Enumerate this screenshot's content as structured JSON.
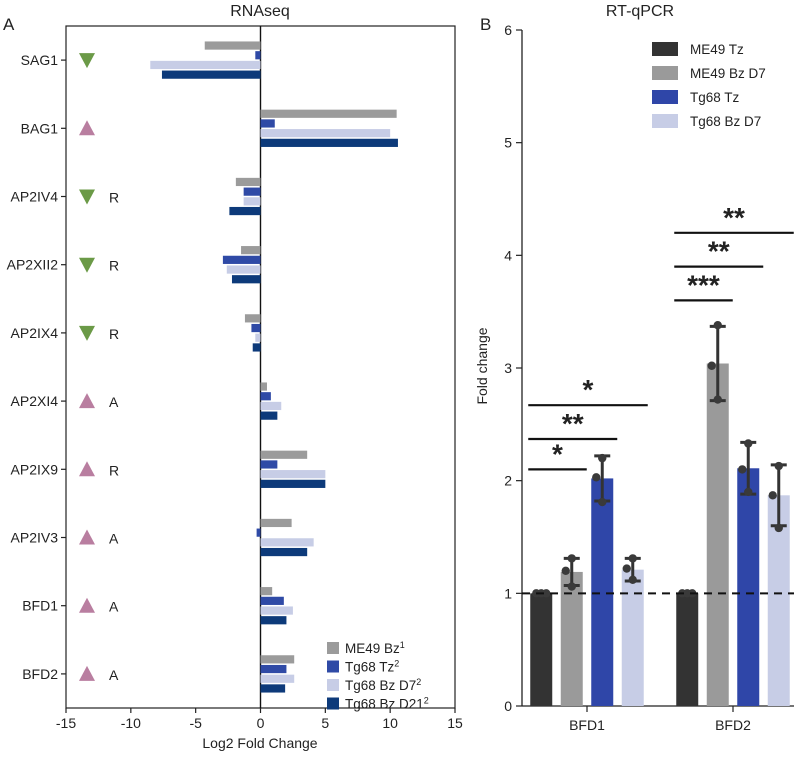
{
  "panel_labels": {
    "a": "A",
    "b": "B"
  },
  "chart_data": [
    {
      "type": "bar",
      "orientation": "horizontal",
      "title": "RNAseq",
      "xlabel": "Log2 Fold Change",
      "ylabel": "",
      "xlim": [
        -15,
        15
      ],
      "xticks": [
        "-15",
        "-10",
        "-5",
        "0",
        "5",
        "10",
        "15"
      ],
      "categories": [
        "SAG1",
        "BAG1",
        "AP2IV4",
        "AP2XII2",
        "AP2IX4",
        "AP2XI4",
        "AP2IX9",
        "AP2IV3",
        "BFD1",
        "BFD2"
      ],
      "markers": [
        {
          "direction": "down",
          "color": "#6b9a47",
          "note": ""
        },
        {
          "direction": "up",
          "color": "#b97ea0",
          "note": ""
        },
        {
          "direction": "down",
          "color": "#6b9a47",
          "note": "R"
        },
        {
          "direction": "down",
          "color": "#6b9a47",
          "note": "R"
        },
        {
          "direction": "down",
          "color": "#6b9a47",
          "note": "R"
        },
        {
          "direction": "up",
          "color": "#b97ea0",
          "note": "A"
        },
        {
          "direction": "up",
          "color": "#b97ea0",
          "note": "R"
        },
        {
          "direction": "up",
          "color": "#b97ea0",
          "note": "A"
        },
        {
          "direction": "up",
          "color": "#b97ea0",
          "note": "A"
        },
        {
          "direction": "up",
          "color": "#b97ea0",
          "note": "A"
        }
      ],
      "series": [
        {
          "name": "ME49 Bz",
          "superscript": "1",
          "color": "#9b9b9b",
          "values": [
            -4.3,
            10.5,
            -1.9,
            -1.5,
            -1.2,
            0.5,
            3.6,
            2.4,
            0.9,
            2.6
          ]
        },
        {
          "name": "Tg68 Tz",
          "superscript": "2",
          "color": "#2f4aa6",
          "values": [
            -0.4,
            1.1,
            -1.3,
            -2.9,
            -0.7,
            0.8,
            1.3,
            -0.3,
            1.8,
            2.0
          ]
        },
        {
          "name": "Tg68 Bz D7",
          "superscript": "2",
          "color": "#c7cde6",
          "values": [
            -8.5,
            10.0,
            -1.3,
            -2.6,
            -0.4,
            1.6,
            5.0,
            4.1,
            2.5,
            2.6
          ]
        },
        {
          "name": "Tg68 Bz D21",
          "superscript": "2",
          "color": "#0d3a7a",
          "values": [
            -7.6,
            10.6,
            -2.4,
            -2.2,
            -0.6,
            1.3,
            5.0,
            3.6,
            2.0,
            1.9
          ]
        }
      ],
      "legend_position": "bottom-right"
    },
    {
      "type": "bar",
      "title": "RT-qPCR",
      "xlabel": "",
      "ylabel": "Fold change",
      "ylim": [
        0,
        6
      ],
      "yticks": [
        "0",
        "1",
        "2",
        "3",
        "4",
        "5",
        "6"
      ],
      "categories": [
        "BFD1",
        "BFD2"
      ],
      "reference_line": 1,
      "series": [
        {
          "name": "ME49 Tz",
          "color": "#333333",
          "values": [
            1.0,
            1.0
          ],
          "error": [
            0.0,
            0.0
          ],
          "points": [
            [
              1.0,
              1.0,
              1.0
            ],
            [
              1.0,
              1.0,
              1.0
            ]
          ]
        },
        {
          "name": "ME49 Bz D7",
          "color": "#9a9a9a",
          "values": [
            1.19,
            3.04
          ],
          "error": [
            0.12,
            0.33
          ],
          "points": [
            [
              1.06,
              1.2,
              1.31
            ],
            [
              2.72,
              3.02,
              3.38
            ]
          ]
        },
        {
          "name": "Tg68 Tz",
          "color": "#2f46a8",
          "values": [
            2.02,
            2.11
          ],
          "error": [
            0.2,
            0.23
          ],
          "points": [
            [
              1.81,
              2.03,
              2.2
            ],
            [
              1.9,
              2.1,
              2.33
            ]
          ]
        },
        {
          "name": "Tg68 Bz D7",
          "color": "#c7cde6",
          "values": [
            1.21,
            1.87
          ],
          "error": [
            0.1,
            0.27
          ],
          "points": [
            [
              1.12,
              1.22,
              1.31
            ],
            [
              1.58,
              1.87,
              2.13
            ]
          ]
        }
      ],
      "significance": [
        {
          "group": "BFD1",
          "from": 0,
          "to": 1,
          "y": 2.1,
          "label": "*"
        },
        {
          "group": "BFD1",
          "from": 0,
          "to": 2,
          "y": 2.37,
          "label": "**"
        },
        {
          "group": "BFD1",
          "from": 0,
          "to": 3,
          "y": 2.67,
          "label": "*"
        },
        {
          "group": "BFD2",
          "from": 0,
          "to": 1,
          "y": 3.6,
          "label": "***"
        },
        {
          "group": "BFD2",
          "from": 0,
          "to": 2,
          "y": 3.9,
          "label": "**"
        },
        {
          "group": "BFD2",
          "from": 0,
          "to": 3,
          "y": 4.2,
          "label": "**"
        }
      ],
      "legend_position": "top-right"
    }
  ]
}
